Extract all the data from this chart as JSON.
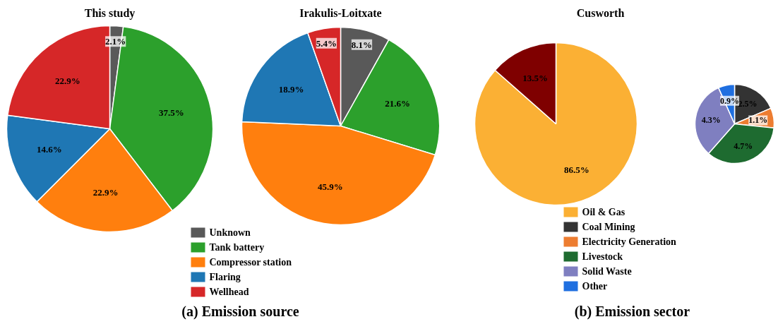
{
  "chart_data": [
    {
      "type": "pie",
      "categories": [
        "Unknown",
        "Tank battery",
        "Compressor station",
        "Flaring",
        "Wellhead"
      ],
      "colors": [
        "#595959",
        "#2ca02c",
        "#ff7f0e",
        "#1f77b4",
        "#d62728"
      ],
      "legend": "bottom",
      "annotations": [
        "(a) Emission source"
      ],
      "series": [
        {
          "name": "This study",
          "values": [
            2.1,
            37.5,
            22.9,
            14.6,
            22.9
          ],
          "value_labels": [
            "2.1%",
            "37.5%",
            "22.9%",
            "14.6%",
            "22.9%"
          ]
        },
        {
          "name": "Irakulis-Loitxate",
          "values": [
            8.1,
            21.6,
            45.9,
            18.9,
            5.4
          ],
          "value_labels": [
            "8.1%",
            "21.6%",
            "45.9%",
            "18.9%",
            "5.4%"
          ]
        }
      ]
    },
    {
      "type": "pie",
      "title": "Cusworth",
      "categories": [
        "Oil & Gas",
        null
      ],
      "values": [
        86.5,
        13.5
      ],
      "value_labels": [
        "86.5%",
        "13.5%"
      ],
      "colors": [
        "#fbb034",
        "#7f0000"
      ],
      "legend": "bottom"
    },
    {
      "type": "pie",
      "categories": [
        "Coal Mining",
        "Electricity Generation",
        "Livestock",
        "Solid Waste",
        "Other"
      ],
      "values": [
        2.5,
        1.1,
        4.7,
        4.3,
        0.9
      ],
      "value_labels": [
        "2.5%",
        "1.1%",
        "4.7%",
        "4.3%",
        "0.9%"
      ],
      "colors": [
        "#333333",
        "#ed7d31",
        "#1e6b30",
        "#7f7fc0",
        "#1f6fe0"
      ],
      "legend": "bottom",
      "annotations": [
        "(b) Emission sector"
      ]
    }
  ]
}
